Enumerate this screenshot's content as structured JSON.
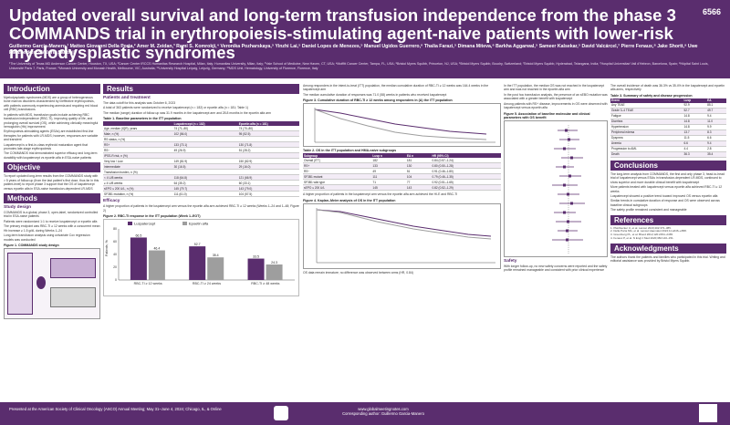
{
  "header": {
    "poster_number": "6566",
    "title": "Updated overall survival and long-term transfusion independence from the phase 3 COMMANDS trial in erythropoiesis-stimulating agent-naive patients with lower-risk myelodysplastic syndromes",
    "authors": "Guillermo Garcia-Manero,¹ Matteo Giovanni Della Porta,² Amer M. Zeidan,³ Rami S. Komrokji,⁴ Veronika Pozharskaya,⁵ Yinzhi Lai,⁵ Daniel Lopes de Menezes,⁵ Manuel Ugidos Guerrero,⁶ Thalia Farazi,⁵ Dimana Miteva,⁶ Barkha Aggarwal,⁵ Sameer Kalsekar,⁵ David Valcárcel,⁷ Pierre Fenaux,⁸ Jake Shortt,⁹ Uwe Platzbecker,¹⁰ Valeria Santini¹¹",
    "affiliations": "¹The University of Texas MD Anderson Cancer Center, Houston, TX, USA; ²Cancer Center IRCCS Humanitas Research Hospital, Milan, Italy; Humanitas University, Milan, Italy; ³Yale School of Medicine, New Haven, CT, USA; ⁴Moffitt Cancer Center, Tampa, FL, USA; ⁵Bristol Myers Squibb, Princeton, NJ, USA; ⁶Bristol Myers Squibb, Boudry, Switzerland; ⁷Bristol Myers Squibb, Hyderabad, Telangana, India; ⁷Hospital Universitari Vall d'Hebron, Barcelona, Spain; ⁸Hôpital Saint Louis, Université Paris 7, Paris, France; ⁹Monash University and Monash Health, Melbourne, VIC, Australia; ¹⁰University Hospital Leipzig, Leipzig, Germany; ¹¹MDS Unit, Hematology, University of Florence, Florence, Italy"
  },
  "introduction": {
    "heading": "Introduction",
    "bullets": [
      "Myelodysplastic syndromes (MDS) are a group of heterogeneous bone marrow disorders characterized by ineffective erythropoiesis, with patients commonly experiencing anemia and requiring red blood cell (RBC) transfusions",
      "In patients with MDS, transfusion goals include achieving RBC transfusion independence (RBC-TI), improving quality of life, and prolonging overall survival (OS), while achieving clinically meaningful hemoglobin (Hb) improvement",
      "Erythropoiesis-stimulating agents (ESAs) are established first-line therapies for patients with LR-MDS; however, responses are variable and transient",
      "Luspatercept is a first-in-class erythroid maturation agent that promotes late-stage erythropoiesis",
      "The COMMANDS trial demonstrated superior efficacy and long-term durability with luspatercept vs epoetin alfa in ESA-naive patients"
    ]
  },
  "objective": {
    "heading": "Objective",
    "text": "To report updated long-term results from the COMMANDS study with > 5 years of follow-up (from the last patient's first dose, thus far in this patient-level) to report phase 3 support that the OS of luspatercept versus epoetin alfa in ESA-naive transfusion-dependent LR-MDS"
  },
  "methods": {
    "heading": "Methods",
    "study_design_heading": "Study design",
    "bullets": [
      "COMMANDS is a global, phase 3, open-label, randomized controlled trial in ESA-naive patients",
      "Patients were randomized 1:1 to receive luspatercept or epoetin alfa",
      "The primary endpoint was RBC-TI ≥ 12 weeks with a concurrent mean Hb increase ≥ 1.5 g/dL during Weeks 1–24",
      "Long-term transfusion analysis using univariate Cox regression models was conducted"
    ],
    "figure_caption": "Figure 1. COMMANDS study design"
  },
  "results": {
    "heading": "Results",
    "patients_heading": "Patients and treatment",
    "bullets": [
      "The data cutoff for this analysis was October 6, 2023",
      "A total of 363 patients were randomized to receive luspatercept (n = 182) or epoetin alfa (n = 181; Table 1)",
      "The median (range) duration of follow-up was 31.9 months in the luspatercept arm and 28.8 months in the epoetin alfa arm"
    ],
    "table1_caption": "Table 1. Baseline parameters in the ITT population",
    "table1_headers": [
      "",
      "Luspatercept (n = 182)",
      "Epoetin alfa (n = 181)"
    ],
    "table1_rows": [
      [
        "Age, median (IQR), years",
        "74 (71–80)",
        "74 (70–80)"
      ],
      [
        "Male, n (%)",
        "102 (56.0)",
        "95 (52.5)"
      ],
      [
        "RS status, n (%)",
        "",
        ""
      ],
      [
        "  RS+",
        "133 (73.1)",
        "130 (71.8)"
      ],
      [
        "  RS−",
        "49 (26.9)",
        "51 (28.2)"
      ],
      [
        "IPSS-R risk, n (%)",
        "",
        ""
      ],
      [
        "  Very low / Low",
        "149 (81.9)",
        "150 (82.9)"
      ],
      [
        "  Intermediate",
        "30 (16.5)",
        "29 (16.0)"
      ],
      [
        "Transfusion burden, n (%)",
        "",
        ""
      ],
      [
        "  < 4 U/8 weeks",
        "118 (64.8)",
        "121 (66.9)"
      ],
      [
        "  ≥ 4 U/8 weeks",
        "64 (35.2)",
        "60 (33.1)"
      ],
      [
        "sEPO ≤ 200 U/L, n (%)",
        "145 (79.7)",
        "143 (79.0)"
      ],
      [
        "SF3B1 mutation, n (%)",
        "111 (61.0)",
        "104 (57.5)"
      ]
    ],
    "efficacy_heading": "Efficacy",
    "efficacy_text": "A higher proportion of patients in the luspatercept arm versus the epoetin alfa arm achieved RBC-TI ≥ 12 weeks (Weeks 1–24 and 1–48; Figure 2)",
    "figure2_caption": "Figure 2. RBC-TI response in the ITT population (Week 1–EOT)"
  },
  "chart_data": {
    "type": "bar",
    "categories": [
      "RBC-TI ≥ 12 weeks",
      "RBC-TI ≥ 24 weeks",
      "RBC-TI ≥ 48 weeks"
    ],
    "series": [
      {
        "name": "Luspatercept",
        "values": [
          66.5,
          52.7,
          33.5
        ]
      },
      {
        "name": "Epoetin alfa",
        "values": [
          46.4,
          35.4,
          24.3
        ]
      }
    ],
    "title": "",
    "xlabel": "",
    "ylabel": "Patients, %",
    "ylim": [
      0,
      80
    ],
    "colors": {
      "Luspatercept": "#5a2d6e",
      "Epoetin alfa": "#9e9e9e"
    }
  },
  "survival": {
    "bullets": [
      "Among responders in the intent-to-treat (ITT) population, the median cumulative duration of RBC-TI ≥ 12 weeks was 164.4 weeks in the luspatercept arm",
      "The median cumulative duration of responses was 71.0 (58) weeks in patients who received luspatercept",
      "A higher proportion of patients in the luspatercept arm versus the epoetin alfa arm achieved the HI-E and RBC-TI"
    ],
    "table3_caption": "Figure 3. Cumulative duration of RBC-TI ≥ 12 weeks among responders in (A) the ITT population",
    "km_caption": "Figure 4. Kaplan–Meier analysis of OS in the ITT population",
    "km_text": "OS data remain immature; no difference was observed between arms (HR, 0.84)"
  },
  "table_os": {
    "caption": "Table 2. OS in the ITT population and HMA-naive subgroups",
    "headers": [
      "Subgroup",
      "Lusp n",
      "EA n",
      "HR (95% CI)"
    ],
    "rows": [
      [
        "Overall (ITT)",
        "182",
        "181",
        "0.84 (0.57–1.24)"
      ],
      [
        "RS+",
        "133",
        "130",
        "0.80 (0.50–1.28)"
      ],
      [
        "RS−",
        "49",
        "51",
        "0.91 (0.46–1.80)"
      ],
      [
        "SF3B1 mutant",
        "111",
        "104",
        "0.79 (0.46–1.35)"
      ],
      [
        "SF3B1 wild type",
        "71",
        "77",
        "0.92 (0.51–1.65)"
      ],
      [
        "sEPO ≤ 200 U/L",
        "145",
        "143",
        "0.82 (0.52–1.29)"
      ]
    ]
  },
  "col4": {
    "bullets": [
      "In the ITT population, the median OS was not reached in the luspatercept arm and was not reached in the epoetin alfa arm",
      "In the post hoc transfusion analysis, the presence of an sEBO mutation was associated with a greater benefit with luspatercept",
      "Among patients with RS+ disease, improvements in OS were observed with luspatercept versus epoetin alfa"
    ],
    "figure_caption": "Figure 5. Association of baseline molecular and clinical parameters with OS benefit",
    "safety_heading": "Safety",
    "safety_text": "With longer follow-up, no new safety concerns were reported and the safety profile remained manageable and consistent with prior clinical experience"
  },
  "col5": {
    "intro_text": "The overall incidence of death was 36.3% vs 35.4% in the luspatercept and epoetin alfa arms, respectively",
    "table_caption": "Table 3. Summary of safety and disease progression",
    "table_headers": [
      "Event",
      "Lusp",
      "EA"
    ],
    "table_rows": [
      [
        "Any TEAE",
        "92.9",
        "85.1"
      ],
      [
        "Grade 3–4 TEAE",
        "52.7",
        "49.7"
      ],
      [
        "Fatigue",
        "14.8",
        "9.4"
      ],
      [
        "Diarrhea",
        "14.8",
        "11.0"
      ],
      [
        "Hypertension",
        "14.8",
        "9.9"
      ],
      [
        "Peripheral edema",
        "13.7",
        "8.3"
      ],
      [
        "Dyspnea",
        "11.5",
        "6.6"
      ],
      [
        "Anemia",
        "6.6",
        "9.4"
      ],
      [
        "Progression to AML",
        "4.4",
        "2.8"
      ],
      [
        "Death",
        "36.3",
        "35.4"
      ]
    ],
    "conclusions_heading": "Conclusions",
    "conclusions": [
      "The long-term analysis from COMMANDS, the first and only phase 3, head-to-head trial of luspatercept versus ESAs in transfusion-dependent LR-MDS, continued to show superior and more durable clinical benefit with luspatercept",
      "More patients treated with luspatercept versus epoetin alfa achieved RBC-TI ≥ 12 weeks",
      "Luspatercept showed a positive trend toward improved OS versus epoetin alfa",
      "Similar trends in cumulative duration of response and OS were observed across baseline clinical subgroups",
      "The safety profile remained consistent and manageable"
    ],
    "references_heading": "References",
    "references": [
      "1. Platzbecker U, et al. Lancet 2023;402:373–385.",
      "2. Della Porta MG, et al. Lancet Haematol 2024;11:e646–e658.",
      "3. Greenberg PL, et al. Blood 2012;120:2454–2465.",
      "4. Fenaux P, et al. N Engl J Med 2020;382:140–151."
    ],
    "ack_heading": "Acknowledgments",
    "ack_text": "The authors thank the patients and families who participated in this trial. Writing and editorial assistance was provided by Bristol Myers Squibb."
  },
  "footer": {
    "meeting": "Presented at the American Society of Clinical Oncology (ASCO) Annual Meeting; May 31–June 4, 2024; Chicago, IL, & Online",
    "website": "www.globalmeetingnotes.com",
    "contact": "Corresponding author: Guillermo Garcia-Manero"
  }
}
